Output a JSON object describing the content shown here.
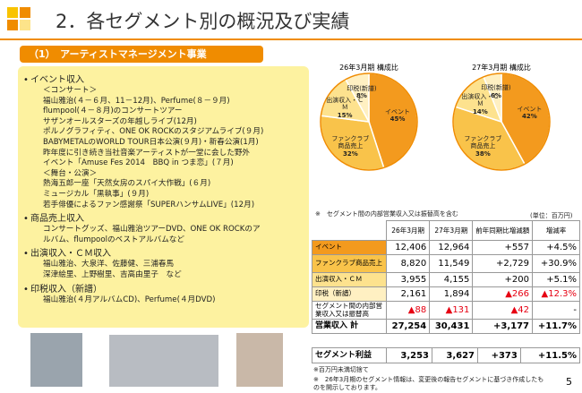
{
  "header": {
    "title": "2．各セグメント別の概況及び実績",
    "section": "（1）　アーティストマネージメント事業"
  },
  "left": {
    "sections": [
      {
        "heading": "イベント収入",
        "lines": [
          "＜コンサート＞",
          "福山雅治(４－６月、11－12月)、Perfume(８－９月)",
          "flumpool(４－８月)のコンサートツアー",
          "サザンオールスターズの年越しライブ(12月)",
          "ポルノグラフィティ、ONE OK ROCKのスタジアムライブ(９月)",
          "BABYMETALのWORLD TOUR日本公演(９月)・新春公演(1月)",
          "昨年度に引き続き当社音楽アーティストが一堂に会した野外",
          "イベント「Amuse Fes 2014　BBQ in つま恋」(７月)",
          "＜舞台・公演＞",
          "熱海五郎一座「天然女房のスパイ大作戦」(６月)",
          "ミュージカル「黒執事」(９月)",
          "若手俳優によるファン感謝祭「SUPERハンサムLIVE」(12月)"
        ]
      },
      {
        "heading": "商品売上収入",
        "lines": [
          "コンサートグッズ、福山雅治ツアーDVD、ONE OK ROCKのア",
          "ルバム、flumpoolのベストアルバムなど"
        ]
      },
      {
        "heading": "出演収入・ＣＭ収入",
        "lines": [
          "福山雅治、大泉洋、佐藤健、三浦春馬",
          "深津絵里、上野樹里、吉高由里子　など"
        ]
      },
      {
        "heading": "印税収入（新譜）",
        "lines": [
          "福山雅治(４月アルバムCD)、Perfume(４月DVD)"
        ]
      }
    ]
  },
  "chart_data": [
    {
      "type": "pie",
      "title": "26年3月期 構成比",
      "categories": [
        "イベント",
        "ファンクラブ商品売上",
        "出演収入・ＣＭ",
        "印税(新譜)"
      ],
      "values": [
        45,
        32,
        15,
        8
      ],
      "value_labels": [
        "45%",
        "32%",
        "15%",
        "8%"
      ],
      "colors": [
        "#f39a1e",
        "#f9c34a",
        "#fde28e",
        "#fff0c2"
      ]
    },
    {
      "type": "pie",
      "title": "27年3月期 構成比",
      "categories": [
        "イベント",
        "ファンクラブ商品売上",
        "出演収入・ＣＭ",
        "印税(新譜)"
      ],
      "values": [
        42,
        38,
        14,
        6
      ],
      "value_labels": [
        "42%",
        "38%",
        "14%",
        "6%"
      ],
      "colors": [
        "#f39a1e",
        "#f9c34a",
        "#fde28e",
        "#fff0c2"
      ]
    }
  ],
  "table": {
    "note": "※　セグメント間の内部営業収入又は振替高を含む",
    "unit": "(単位：百万円)",
    "headers": [
      "26年3月期",
      "27年3月期",
      "前年同期比増減額",
      "増減率"
    ],
    "rows": [
      {
        "label": "イベント",
        "label_color": "#f39a1e",
        "cells": [
          "12,406",
          "12,964",
          "+557",
          "+4.5%"
        ],
        "colors": [
          "#000",
          "#000",
          "#000",
          "#000"
        ]
      },
      {
        "label": "ファンクラブ商品売上",
        "label_color": "#f9c34a",
        "cells": [
          "8,820",
          "11,549",
          "+2,729",
          "+30.9%"
        ],
        "colors": [
          "#000",
          "#000",
          "#000",
          "#000"
        ]
      },
      {
        "label": "出演収入・ＣＭ",
        "label_color": "#fde28e",
        "cells": [
          "3,955",
          "4,155",
          "+200",
          "+5.1%"
        ],
        "colors": [
          "#000",
          "#000",
          "#000",
          "#000"
        ]
      },
      {
        "label": "印税（新譜）",
        "label_color": "#fff0c2",
        "cells": [
          "2,161",
          "1,894",
          "▲266",
          "▲12.3%"
        ],
        "colors": [
          "#000",
          "#000",
          "#e60012",
          "#e60012"
        ]
      },
      {
        "label": "セグメント間の内部営業収入又は振替高",
        "label_color": "#ffffff",
        "cells": [
          "▲88",
          "▲131",
          "▲42",
          "-"
        ],
        "colors": [
          "#e60012",
          "#e60012",
          "#e60012",
          "#000"
        ]
      },
      {
        "label": "営業収入 計",
        "label_color": "#ffffff",
        "cells": [
          "27,254",
          "30,431",
          "+3,177",
          "+11.7%"
        ],
        "colors": [
          "#000",
          "#000",
          "#000",
          "#000"
        ]
      }
    ],
    "profit_row": {
      "label": "セグメント利益",
      "label_color": "#ffffff",
      "cells": [
        "3,253",
        "3,627",
        "+373",
        "+11.5%"
      ],
      "colors": [
        "#000",
        "#000",
        "#000",
        "#000"
      ]
    },
    "footnotes": [
      "※百万円未満切捨て",
      "※　26年3月期のセグメント情報は、変更後の報告セグメントに基づき作成したものを開示しております。"
    ]
  },
  "page_number": "5"
}
